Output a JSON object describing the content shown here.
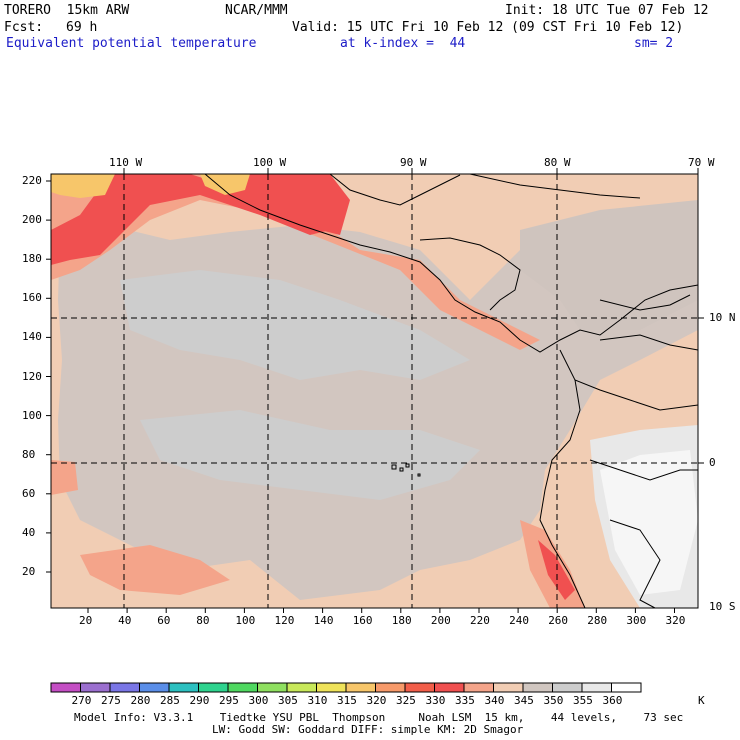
{
  "header": {
    "model": "TORERO  15km ARW",
    "center": "NCAR/MMM",
    "init": "Init: 18 UTC Tue 07 Feb 12",
    "fcst_label": "Fcst:",
    "fcst_value": "69 h",
    "valid": "Valid: 15 UTC Fri 10 Feb 12 (09 CST Fri 10 Feb 12)",
    "field": "Equivalent potential temperature",
    "level": "at k-index =  44",
    "smoothing": "sm= 2"
  },
  "map": {
    "lon_labels": [
      "110 W",
      "100 W",
      "90 W",
      "80 W",
      "70 W"
    ],
    "lat_labels": [
      "10 N",
      "0",
      "10 S"
    ],
    "y_grid_labels": [
      "220",
      "200",
      "180",
      "160",
      "140",
      "120",
      "100",
      "80",
      "60",
      "40",
      "20"
    ],
    "x_grid_labels": [
      "20",
      "40",
      "60",
      "80",
      "100",
      "120",
      "140",
      "160",
      "180",
      "200",
      "220",
      "240",
      "260",
      "280",
      "300",
      "320"
    ]
  },
  "colorbar": {
    "labels": [
      "270",
      "275",
      "280",
      "285",
      "290",
      "295",
      "300",
      "305",
      "310",
      "315",
      "320",
      "325",
      "330",
      "335",
      "340",
      "345",
      "350",
      "355",
      "360"
    ],
    "unit": "K",
    "colors": [
      "#c44ec4",
      "#9b6fcf",
      "#7a76e6",
      "#5a8ee8",
      "#2cc0c0",
      "#2ed38e",
      "#4fd860",
      "#8fe060",
      "#c8e85a",
      "#efe35a",
      "#f7c66a",
      "#f79a6a",
      "#f25e4a",
      "#f05050",
      "#f4a48a",
      "#f1cdb4",
      "#d0c6c0",
      "#cdcdcd",
      "#e8e8e8",
      "#ffffff"
    ]
  },
  "footer": {
    "line1": "Model Info: V3.3.1    Tiedtke YSU PBL  Thompson     Noah LSM  15 km,    44 levels,    73 sec",
    "line2": "LW: Godd SW: Goddard DIFF: simple KM: 2D Smagor"
  }
}
